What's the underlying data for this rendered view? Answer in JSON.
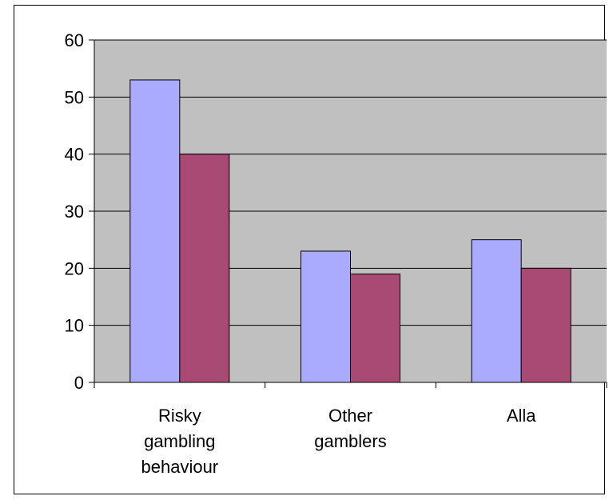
{
  "chart_data": {
    "type": "bar",
    "categories": [
      [
        "Risky",
        "gambling",
        "behaviour"
      ],
      [
        "Other",
        "gamblers"
      ],
      [
        "Alla"
      ]
    ],
    "series": [
      {
        "color": "#aaaaff",
        "values": [
          53,
          23,
          25
        ]
      },
      {
        "color": "#a84a74",
        "values": [
          40,
          19,
          20
        ]
      }
    ],
    "ylim": [
      0,
      60
    ],
    "yticks": [
      "0",
      "10",
      "20",
      "30",
      "40",
      "50",
      "60"
    ],
    "grid": true,
    "plot_background": "#c0c0c0"
  }
}
